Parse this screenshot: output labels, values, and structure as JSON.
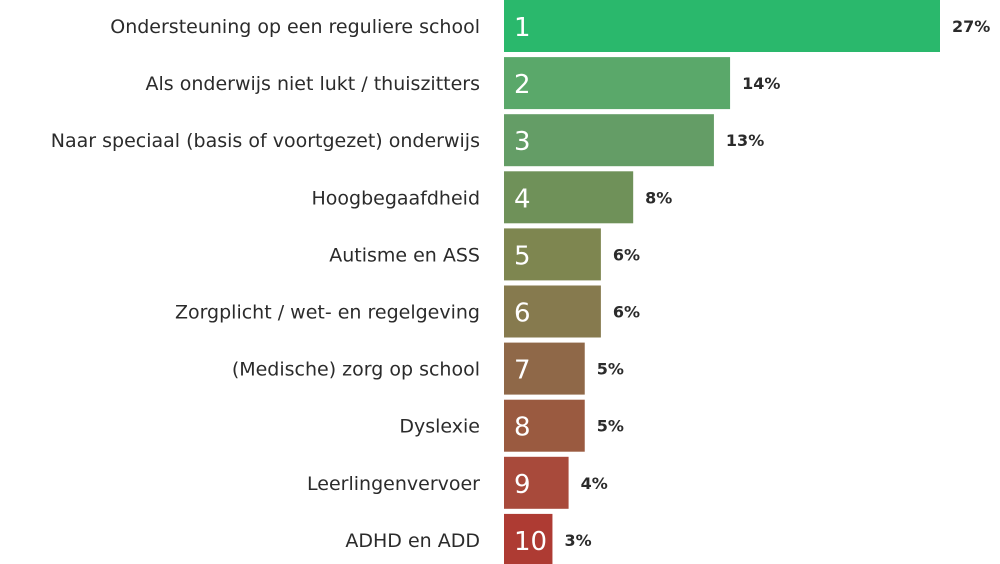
{
  "chart_data": {
    "type": "bar",
    "orientation": "horizontal",
    "categories": [
      "Ondersteuning op een reguliere school",
      "Als onderwijs niet lukt / thuiszitters",
      "Naar speciaal (basis of voortgezet) onderwijs",
      "Hoogbegaafdheid",
      "Autisme en ASS",
      "Zorgplicht / wet- en regelgeving",
      "(Medische) zorg op school",
      "Dyslexie",
      "Leerlingenvervoer",
      "ADHD en ADD"
    ],
    "ranks": [
      "1",
      "2",
      "3",
      "4",
      "5",
      "6",
      "7",
      "8",
      "9",
      "10"
    ],
    "values": [
      27,
      14,
      13,
      8,
      6,
      6,
      5,
      5,
      4,
      3
    ],
    "value_labels": [
      "27%",
      "14%",
      "13%",
      "8%",
      "6%",
      "6%",
      "5%",
      "5%",
      "4%",
      "3%"
    ],
    "xlim": [
      0,
      27
    ],
    "grid": false,
    "colors": [
      "#2ab86c",
      "#5aa86a",
      "#649d66",
      "#6f9159",
      "#7e8650",
      "#867a4e",
      "#8f6848",
      "#9a5a40",
      "#a84a3b",
      "#ae3b33"
    ]
  }
}
